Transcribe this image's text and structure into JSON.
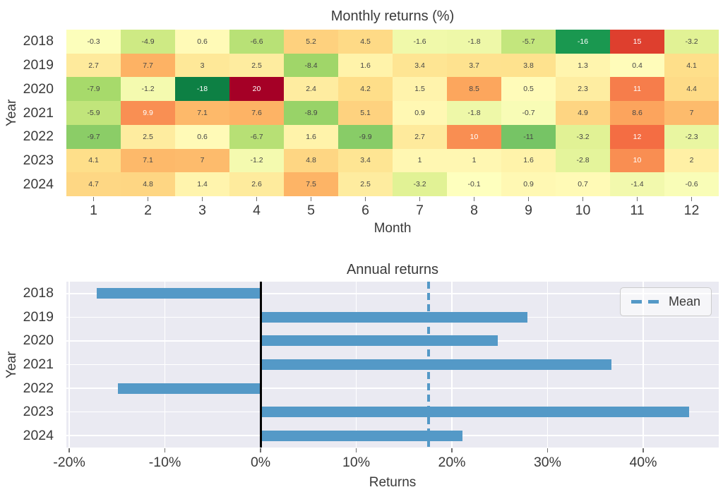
{
  "figure": {
    "background": "#ffffff",
    "text_color": "#3a3a3a"
  },
  "chart_data": [
    {
      "type": "heatmap",
      "title": "Monthly returns (%)",
      "xlabel": "Month",
      "ylabel": "Year",
      "rows": [
        "2018",
        "2019",
        "2020",
        "2021",
        "2022",
        "2023",
        "2024"
      ],
      "columns": [
        "1",
        "2",
        "3",
        "4",
        "5",
        "6",
        "7",
        "8",
        "9",
        "10",
        "11",
        "12"
      ],
      "values": [
        [
          -0.3,
          -4.9,
          0.6,
          -6.6,
          5.2,
          4.5,
          -1.6,
          -1.8,
          -5.7,
          -16,
          15,
          -3.2
        ],
        [
          2.7,
          7.7,
          3,
          2.5,
          -8.4,
          1.6,
          3.4,
          3.7,
          3.8,
          1.3,
          0.4,
          4.1
        ],
        [
          -7.9,
          -1.2,
          -18,
          20,
          2.4,
          4.2,
          1.5,
          8.5,
          0.5,
          2.3,
          11,
          4.4
        ],
        [
          -5.9,
          9.9,
          7.1,
          7.6,
          -8.9,
          5.1,
          0.9,
          -1.8,
          -0.7,
          4.9,
          8.6,
          7
        ],
        [
          -9.7,
          2.5,
          0.6,
          -6.7,
          1.6,
          -9.9,
          2.7,
          10,
          -11,
          -3.2,
          12,
          -2.3
        ],
        [
          4.1,
          7.1,
          7,
          -1.2,
          4.8,
          3.4,
          1,
          1,
          1.6,
          -2.8,
          10,
          2
        ],
        [
          4.7,
          4.8,
          1.4,
          2.6,
          7.5,
          2.5,
          -3.2,
          -0.1,
          0.9,
          0.7,
          -1.4,
          -0.6
        ]
      ],
      "vmin": -20,
      "vmax": 20,
      "colormap": "RdYlGn reversed (negative=green, positive=red)",
      "colormap_anchors": [
        "#a50026",
        "#d73027",
        "#f46d43",
        "#fdae61",
        "#fee08b",
        "#ffffbf",
        "#d9ef8b",
        "#a6d96a",
        "#66bd63",
        "#1a9850",
        "#006837"
      ],
      "annotation_dark_color": "#454545",
      "annotation_light_color": "#ffffff",
      "grid": false
    },
    {
      "type": "bar",
      "orientation": "horizontal",
      "title": "Annual returns",
      "xlabel": "Returns",
      "ylabel": "Year",
      "categories": [
        "2018",
        "2019",
        "2020",
        "2021",
        "2022",
        "2023",
        "2024"
      ],
      "values": [
        -17.1,
        27.9,
        24.8,
        36.7,
        -14.9,
        44.8,
        21.1
      ],
      "mean": 17.6,
      "xlim": [
        -20.3,
        47.9
      ],
      "xticks": [
        -20,
        -10,
        0,
        10,
        20,
        30,
        40
      ],
      "xtick_labels": [
        "-20%",
        "-10%",
        "0%",
        "10%",
        "20%",
        "30%",
        "40%"
      ],
      "bar_color": "#5499c7",
      "plot_background": "#eaeaf2",
      "grid_color": "#ffffff",
      "zero_line_color": "#000000",
      "grid": true,
      "legend": {
        "label": "Mean",
        "position": "upper right"
      }
    }
  ]
}
